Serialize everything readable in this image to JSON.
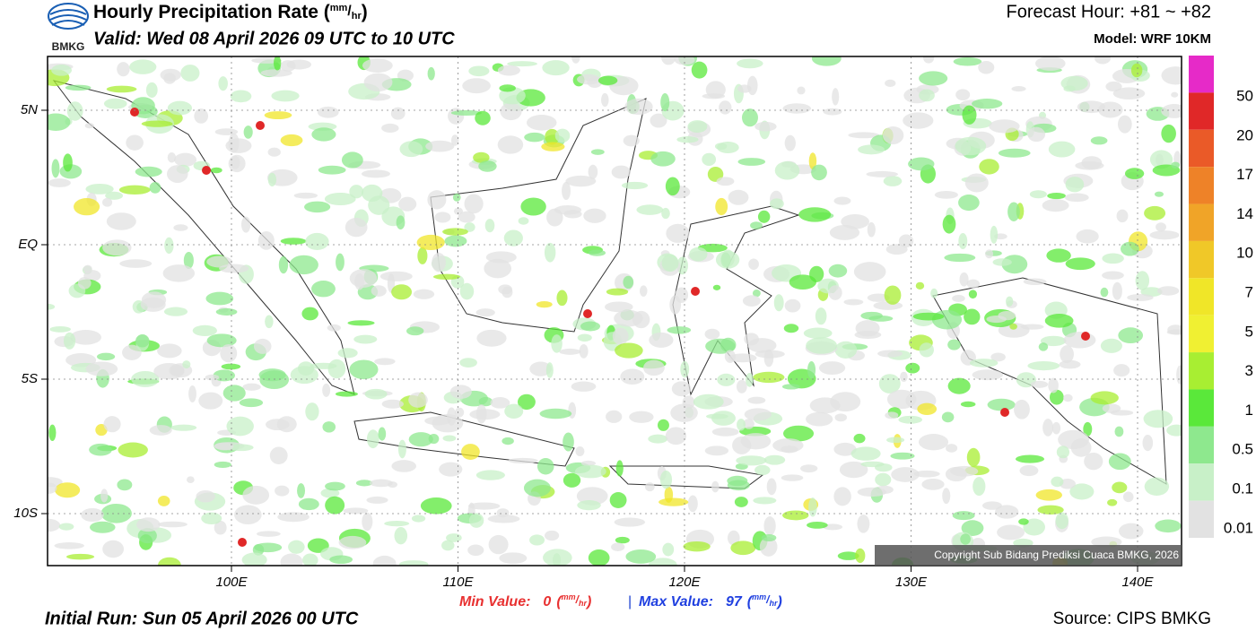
{
  "header": {
    "logo_text": "BMKG",
    "title": "Hourly Precipitation Rate (",
    "unit_top": "mm",
    "unit_bottom": "hr",
    "title_close": ")",
    "valid": "Valid: Wed 08 April 2026 09 UTC to 10 UTC",
    "forecast_hour": "Forecast Hour: +81 ~ +82",
    "model": "Model: WRF 10KM"
  },
  "map": {
    "lat_labels": [
      "5N",
      "EQ",
      "5S",
      "10S"
    ],
    "lon_labels": [
      "100E",
      "110E",
      "120E",
      "130E",
      "140E"
    ],
    "copyright": "Copyright Sub Bidang Prediksi Cuaca BMKG, 2026"
  },
  "colorbar": {
    "labels": [
      "50",
      "20",
      "17",
      "14",
      "10",
      "7",
      "5",
      "3",
      "1",
      "0.5",
      "0.1",
      "0.01"
    ],
    "colors": [
      "#e62ac8",
      "#e02828",
      "#ea5a28",
      "#ee8228",
      "#f0a428",
      "#f0c828",
      "#f0e628",
      "#f0f032",
      "#a8ee32",
      "#5ae83a",
      "#8ee88e",
      "#c8f0c8",
      "#e2e2e2"
    ]
  },
  "footer": {
    "min_label": "Min Value:",
    "min_value": "0",
    "max_label": "Max Value:",
    "max_value": "97",
    "unit_top": "mm",
    "unit_bottom": "hr",
    "separator": "|",
    "initial_run": "Initial Run: Sun 05 April 2026 00 UTC",
    "source": "Source: CIPS BMKG"
  }
}
